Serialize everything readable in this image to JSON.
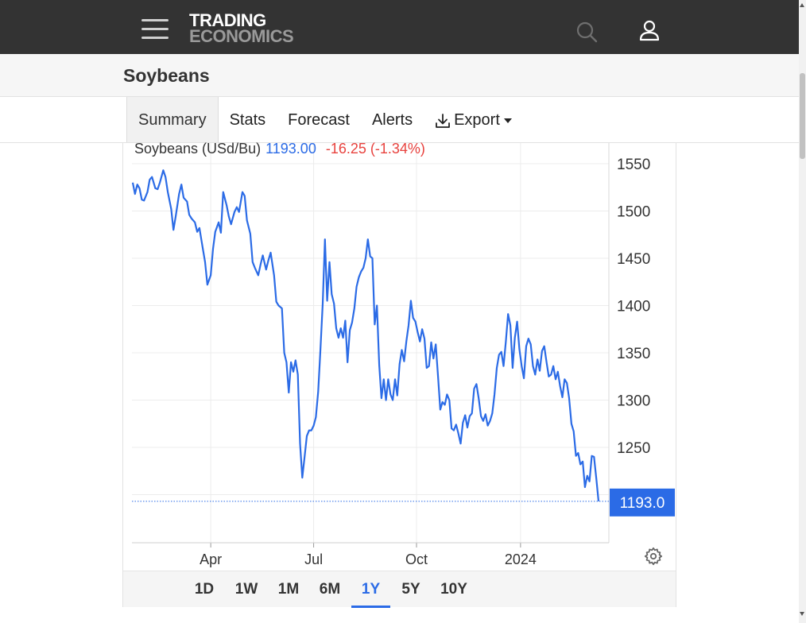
{
  "header": {
    "logo_line1": "TRADING",
    "logo_line2": "ECONOMICS",
    "menu_icon": "hamburger-menu-icon",
    "search_icon": "search-icon",
    "user_icon": "user-icon"
  },
  "page": {
    "title": "Soybeans"
  },
  "tabs": [
    {
      "label": "Summary",
      "active": true
    },
    {
      "label": "Stats"
    },
    {
      "label": "Forecast"
    },
    {
      "label": "Alerts"
    },
    {
      "label": "Export",
      "icon": "download-icon",
      "dropdown": true
    }
  ],
  "legend": {
    "name": "Soybeans (USd/Bu)",
    "price": "1193.00",
    "change": "-16.25 (-1.34%)"
  },
  "colors": {
    "line": "#2b6be6",
    "negative": "#e8423e",
    "accent": "#2b6be6"
  },
  "chart_data": {
    "type": "line",
    "title": "",
    "xlabel": "",
    "ylabel": "",
    "x_ticks": [
      "Apr",
      "Jul",
      "Oct",
      "2024"
    ],
    "y_ticks": [
      1550,
      1500,
      1450,
      1400,
      1350,
      1300,
      1250,
      1200
    ],
    "ylim": [
      1140,
      1565
    ],
    "grid": true,
    "last_value_label": "1193.0",
    "last_value": 1193.0,
    "series": [
      {
        "points": [
          [
            "2023-01-24",
            1530
          ],
          [
            "2023-01-26",
            1518
          ],
          [
            "2023-01-28",
            1528
          ],
          [
            "2023-01-30",
            1524
          ],
          [
            "2023-02-01",
            1512
          ],
          [
            "2023-02-03",
            1511
          ],
          [
            "2023-02-06",
            1520
          ],
          [
            "2023-02-08",
            1533
          ],
          [
            "2023-02-10",
            1536
          ],
          [
            "2023-02-13",
            1524
          ],
          [
            "2023-02-15",
            1523
          ],
          [
            "2023-02-17",
            1530
          ],
          [
            "2023-02-20",
            1543
          ],
          [
            "2023-02-22",
            1536
          ],
          [
            "2023-02-24",
            1520
          ],
          [
            "2023-02-27",
            1502
          ],
          [
            "2023-03-01",
            1480
          ],
          [
            "2023-03-03",
            1494
          ],
          [
            "2023-03-06",
            1518
          ],
          [
            "2023-03-08",
            1528
          ],
          [
            "2023-03-10",
            1514
          ],
          [
            "2023-03-13",
            1510
          ],
          [
            "2023-03-15",
            1496
          ],
          [
            "2023-03-17",
            1492
          ],
          [
            "2023-03-20",
            1488
          ],
          [
            "2023-03-22",
            1478
          ],
          [
            "2023-03-24",
            1482
          ],
          [
            "2023-03-27",
            1460
          ],
          [
            "2023-03-29",
            1446
          ],
          [
            "2023-03-31",
            1422
          ],
          [
            "2023-04-03",
            1432
          ],
          [
            "2023-04-05",
            1460
          ],
          [
            "2023-04-07",
            1478
          ],
          [
            "2023-04-10",
            1488
          ],
          [
            "2023-04-12",
            1477
          ],
          [
            "2023-04-14",
            1520
          ],
          [
            "2023-04-17",
            1506
          ],
          [
            "2023-04-19",
            1494
          ],
          [
            "2023-04-21",
            1486
          ],
          [
            "2023-04-24",
            1499
          ],
          [
            "2023-04-26",
            1504
          ],
          [
            "2023-04-28",
            1499
          ],
          [
            "2023-05-01",
            1520
          ],
          [
            "2023-05-03",
            1516
          ],
          [
            "2023-05-05",
            1490
          ],
          [
            "2023-05-08",
            1476
          ],
          [
            "2023-05-10",
            1446
          ],
          [
            "2023-05-12",
            1440
          ],
          [
            "2023-05-15",
            1432
          ],
          [
            "2023-05-17",
            1443
          ],
          [
            "2023-05-19",
            1453
          ],
          [
            "2023-05-22",
            1438
          ],
          [
            "2023-05-24",
            1448
          ],
          [
            "2023-05-26",
            1456
          ],
          [
            "2023-05-29",
            1432
          ],
          [
            "2023-05-31",
            1404
          ],
          [
            "2023-06-02",
            1400
          ],
          [
            "2023-06-05",
            1397
          ],
          [
            "2023-06-07",
            1350
          ],
          [
            "2023-06-09",
            1340
          ],
          [
            "2023-06-11",
            1308
          ],
          [
            "2023-06-13",
            1340
          ],
          [
            "2023-06-15",
            1330
          ],
          [
            "2023-06-17",
            1342
          ],
          [
            "2023-06-19",
            1327
          ],
          [
            "2023-06-21",
            1254
          ],
          [
            "2023-06-23",
            1218
          ],
          [
            "2023-06-25",
            1240
          ],
          [
            "2023-06-27",
            1262
          ],
          [
            "2023-06-29",
            1268
          ],
          [
            "2023-07-01",
            1268
          ],
          [
            "2023-07-03",
            1273
          ],
          [
            "2023-07-05",
            1282
          ],
          [
            "2023-07-07",
            1309
          ],
          [
            "2023-07-09",
            1353
          ],
          [
            "2023-07-11",
            1402
          ],
          [
            "2023-07-13",
            1470
          ],
          [
            "2023-07-15",
            1405
          ],
          [
            "2023-07-17",
            1446
          ],
          [
            "2023-07-19",
            1412
          ],
          [
            "2023-07-21",
            1402
          ],
          [
            "2023-07-23",
            1376
          ],
          [
            "2023-07-25",
            1366
          ],
          [
            "2023-07-27",
            1376
          ],
          [
            "2023-07-29",
            1366
          ],
          [
            "2023-07-31",
            1384
          ],
          [
            "2023-08-02",
            1340
          ],
          [
            "2023-08-04",
            1374
          ],
          [
            "2023-08-06",
            1382
          ],
          [
            "2023-08-08",
            1397
          ],
          [
            "2023-08-10",
            1420
          ],
          [
            "2023-08-12",
            1430
          ],
          [
            "2023-08-14",
            1436
          ],
          [
            "2023-08-16",
            1440
          ],
          [
            "2023-08-18",
            1450
          ],
          [
            "2023-08-20",
            1470
          ],
          [
            "2023-08-22",
            1452
          ],
          [
            "2023-08-24",
            1450
          ],
          [
            "2023-08-26",
            1380
          ],
          [
            "2023-08-28",
            1400
          ],
          [
            "2023-08-30",
            1337
          ],
          [
            "2023-09-01",
            1302
          ],
          [
            "2023-09-03",
            1322
          ],
          [
            "2023-09-05",
            1300
          ],
          [
            "2023-09-07",
            1322
          ],
          [
            "2023-09-09",
            1306
          ],
          [
            "2023-09-11",
            1300
          ],
          [
            "2023-09-13",
            1322
          ],
          [
            "2023-09-15",
            1305
          ],
          [
            "2023-09-17",
            1338
          ],
          [
            "2023-09-19",
            1353
          ],
          [
            "2023-09-21",
            1341
          ],
          [
            "2023-09-23",
            1362
          ],
          [
            "2023-09-25",
            1379
          ],
          [
            "2023-09-27",
            1405
          ],
          [
            "2023-09-29",
            1387
          ],
          [
            "2023-10-01",
            1383
          ],
          [
            "2023-10-03",
            1372
          ],
          [
            "2023-10-05",
            1362
          ],
          [
            "2023-10-07",
            1375
          ],
          [
            "2023-10-09",
            1365
          ],
          [
            "2023-10-11",
            1334
          ],
          [
            "2023-10-13",
            1336
          ],
          [
            "2023-10-15",
            1361
          ],
          [
            "2023-10-17",
            1344
          ],
          [
            "2023-10-19",
            1359
          ],
          [
            "2023-10-21",
            1326
          ],
          [
            "2023-10-23",
            1290
          ],
          [
            "2023-10-25",
            1298
          ],
          [
            "2023-10-27",
            1295
          ],
          [
            "2023-10-29",
            1306
          ],
          [
            "2023-10-31",
            1300
          ],
          [
            "2023-11-02",
            1270
          ],
          [
            "2023-11-04",
            1268
          ],
          [
            "2023-11-06",
            1274
          ],
          [
            "2023-11-08",
            1265
          ],
          [
            "2023-11-10",
            1254
          ],
          [
            "2023-11-12",
            1276
          ],
          [
            "2023-11-14",
            1284
          ],
          [
            "2023-11-16",
            1271
          ],
          [
            "2023-11-18",
            1283
          ],
          [
            "2023-11-20",
            1286
          ],
          [
            "2023-11-22",
            1312
          ],
          [
            "2023-11-24",
            1317
          ],
          [
            "2023-11-26",
            1302
          ],
          [
            "2023-11-28",
            1283
          ],
          [
            "2023-11-30",
            1278
          ],
          [
            "2023-12-02",
            1285
          ],
          [
            "2023-12-04",
            1273
          ],
          [
            "2023-12-06",
            1278
          ],
          [
            "2023-12-08",
            1286
          ],
          [
            "2023-12-10",
            1306
          ],
          [
            "2023-12-12",
            1334
          ],
          [
            "2023-12-14",
            1348
          ],
          [
            "2023-12-16",
            1351
          ],
          [
            "2023-12-18",
            1336
          ],
          [
            "2023-12-20",
            1362
          ],
          [
            "2023-12-22",
            1391
          ],
          [
            "2023-12-24",
            1379
          ],
          [
            "2023-12-26",
            1334
          ],
          [
            "2023-12-28",
            1366
          ],
          [
            "2023-12-30",
            1383
          ],
          [
            "2024-01-01",
            1354
          ],
          [
            "2024-01-03",
            1336
          ],
          [
            "2024-01-05",
            1323
          ],
          [
            "2024-01-07",
            1357
          ],
          [
            "2024-01-09",
            1365
          ],
          [
            "2024-01-11",
            1359
          ],
          [
            "2024-01-13",
            1336
          ],
          [
            "2024-01-15",
            1327
          ],
          [
            "2024-01-17",
            1343
          ],
          [
            "2024-01-19",
            1331
          ],
          [
            "2024-01-21",
            1352
          ],
          [
            "2024-01-23",
            1357
          ],
          [
            "2024-01-25",
            1340
          ],
          [
            "2024-01-27",
            1325
          ],
          [
            "2024-01-29",
            1327
          ],
          [
            "2024-01-31",
            1336
          ],
          [
            "2024-02-02",
            1322
          ],
          [
            "2024-02-04",
            1330
          ],
          [
            "2024-02-06",
            1315
          ],
          [
            "2024-02-08",
            1303
          ],
          [
            "2024-02-10",
            1322
          ],
          [
            "2024-02-12",
            1318
          ],
          [
            "2024-02-14",
            1302
          ],
          [
            "2024-02-16",
            1275
          ],
          [
            "2024-02-18",
            1267
          ],
          [
            "2024-02-20",
            1241
          ],
          [
            "2024-02-22",
            1244
          ],
          [
            "2024-02-24",
            1232
          ],
          [
            "2024-02-26",
            1235
          ],
          [
            "2024-02-28",
            1208
          ],
          [
            "2024-03-01",
            1220
          ],
          [
            "2024-03-03",
            1214
          ],
          [
            "2024-03-05",
            1241
          ],
          [
            "2024-03-07",
            1240
          ],
          [
            "2024-03-09",
            1217
          ],
          [
            "2024-03-11",
            1193
          ]
        ]
      }
    ]
  },
  "ranges": [
    {
      "label": "1D"
    },
    {
      "label": "1W"
    },
    {
      "label": "1M"
    },
    {
      "label": "6M"
    },
    {
      "label": "1Y",
      "active": true
    },
    {
      "label": "5Y"
    },
    {
      "label": "10Y"
    }
  ]
}
